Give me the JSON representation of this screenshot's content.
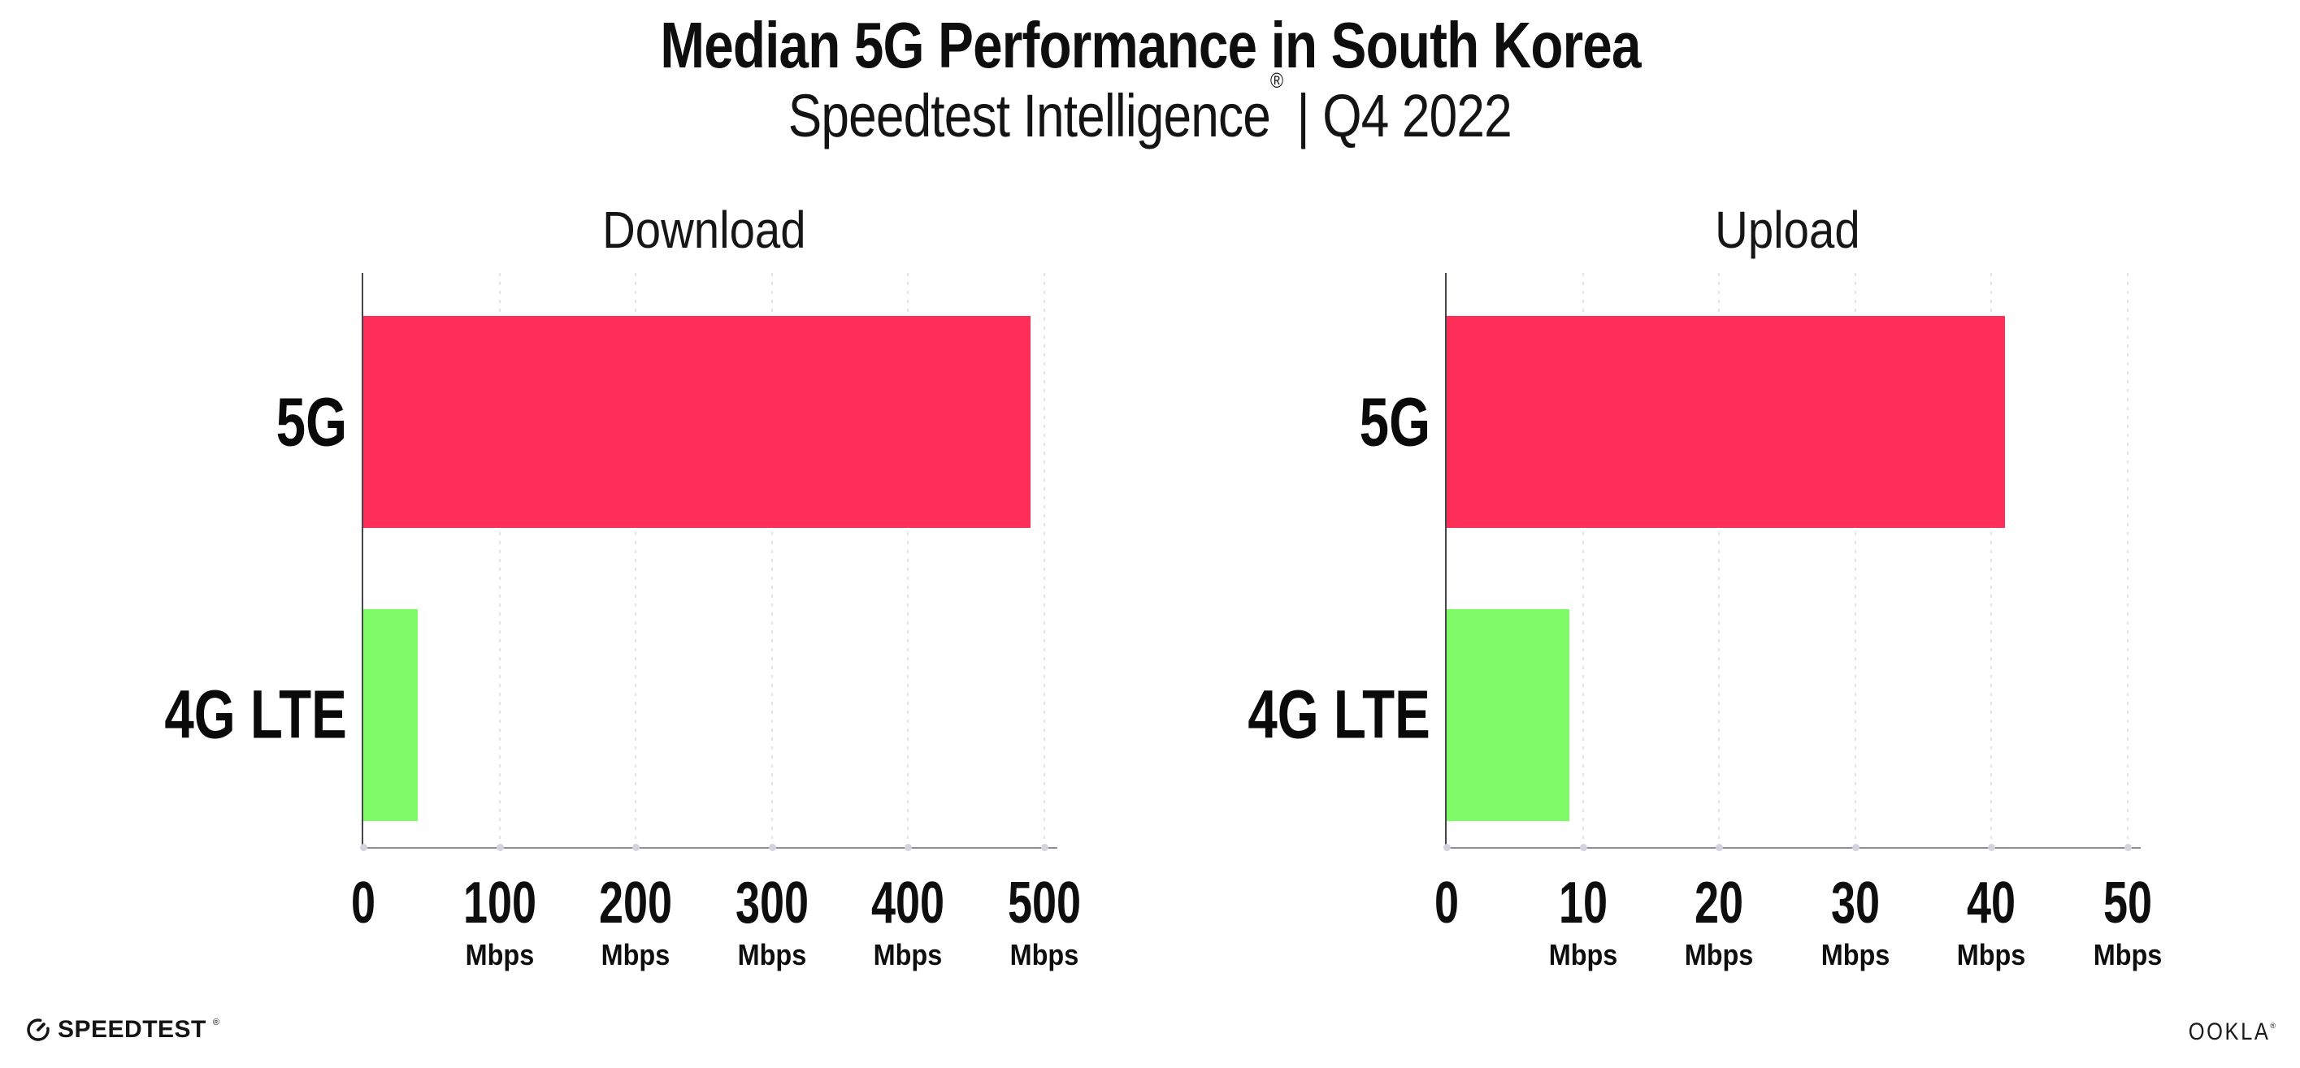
{
  "header": {
    "title": "Median 5G Performance in South Korea",
    "subtitle_brand": "Speedtest Intelligence",
    "subtitle_reg": "®",
    "subtitle_rest": " | Q4 2022"
  },
  "chart_data": [
    {
      "type": "bar",
      "orientation": "horizontal",
      "title": "Download",
      "categories": [
        "5G",
        "4G LTE"
      ],
      "values": [
        490,
        40
      ],
      "unit": "Mbps",
      "xlim": [
        0,
        500
      ],
      "x_ticks": [
        0,
        100,
        200,
        300,
        400,
        500
      ],
      "x_tick_unit": "Mbps",
      "bar_colors": [
        "#fd2e57",
        "#7efb67"
      ],
      "grid": "dotted-vertical",
      "legend": "none"
    },
    {
      "type": "bar",
      "orientation": "horizontal",
      "title": "Upload",
      "categories": [
        "5G",
        "4G LTE"
      ],
      "values": [
        41,
        9
      ],
      "unit": "Mbps",
      "xlim": [
        0,
        50
      ],
      "x_ticks": [
        0,
        10,
        20,
        30,
        40,
        50
      ],
      "x_tick_unit": "Mbps",
      "bar_colors": [
        "#fd2e57",
        "#7efb67"
      ],
      "grid": "dotted-vertical",
      "legend": "none"
    }
  ],
  "footer": {
    "speedtest_label": "SPEEDTEST",
    "speedtest_reg": "®",
    "ookla_label": "OOKLA",
    "ookla_reg": "®"
  },
  "colors": {
    "bar_5g": "#fd2e57",
    "bar_4g_lte": "#7efb67",
    "gridline": "#e3e3ed",
    "axis_left": "#46464d",
    "axis_bottom": "#8d8d95",
    "text": "#0e0e0e",
    "background": "#ffffff"
  }
}
